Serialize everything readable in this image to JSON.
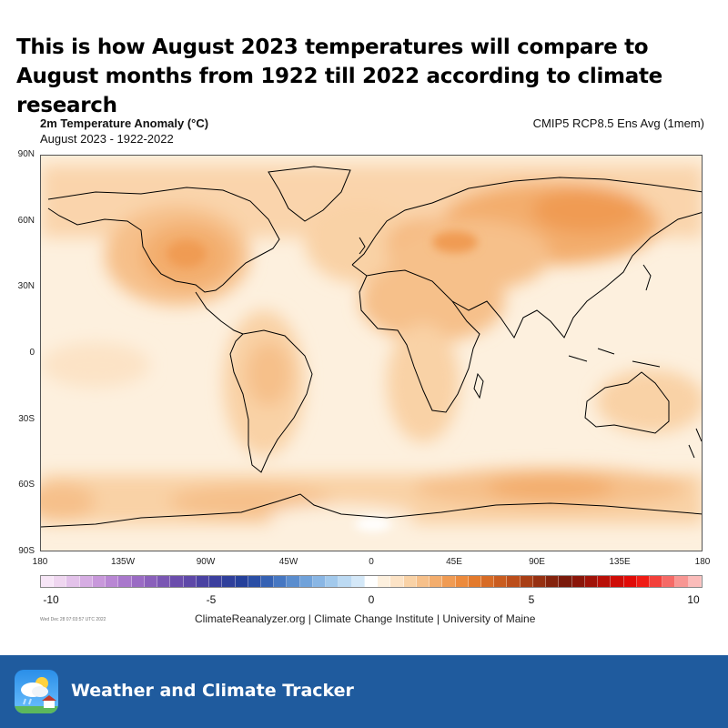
{
  "headline": "This is how August 2023 temperatures will compare to August months from 1922 till 2022 according to climate research",
  "map": {
    "title": "2m Temperature Anomaly (°C)",
    "subtitle": "August 2023 - 1922-2022",
    "model": "CMIP5 RCP8.5 Ens Avg (1mem)",
    "lat_labels": [
      "90N",
      "60N",
      "30N",
      "0",
      "30S",
      "60S",
      "90S"
    ],
    "lon_labels": [
      "180",
      "135W",
      "90W",
      "45W",
      "0",
      "45E",
      "90E",
      "135E",
      "180"
    ],
    "colorbar": {
      "labels": [
        "-10",
        "-5",
        "0",
        "5",
        "10"
      ],
      "colors": [
        "#f7e6f7",
        "#efd6f0",
        "#e3c2ea",
        "#d6ade3",
        "#c898db",
        "#b987d4",
        "#a978cc",
        "#9a6bc4",
        "#8a60bb",
        "#7a56b3",
        "#6b4dac",
        "#5e48a8",
        "#4a42a2",
        "#3b3f9e",
        "#2f3f9b",
        "#25409a",
        "#2a4ea5",
        "#3561b3",
        "#4677c2",
        "#5a8dce",
        "#70a2da",
        "#89b6e4",
        "#a2c9ec",
        "#bcdaf3",
        "#d4e8f8",
        "#ffffff",
        "#fdf0de",
        "#fce3c6",
        "#f9d2a6",
        "#f6c08a",
        "#f3ad6d",
        "#f09b53",
        "#ec8a3c",
        "#e37a2c",
        "#d76b25",
        "#c95c1f",
        "#bb4d1a",
        "#a83e15",
        "#963011",
        "#84230d",
        "#7a1a0b",
        "#8a1509",
        "#a01208",
        "#b80f07",
        "#ce0c06",
        "#e00b07",
        "#ef1b14",
        "#f2403a",
        "#f56a66",
        "#f89693",
        "#fbbcba"
      ]
    },
    "run_date": "Wed Dec 28 07:03:57 UTC 2022",
    "credits": "ClimateReanalyzer.org | Climate Change Institute | University of Maine"
  },
  "footer": {
    "app_name": "Weather and Climate Tracker",
    "app_icon": "weather-cloud-house-icon"
  }
}
